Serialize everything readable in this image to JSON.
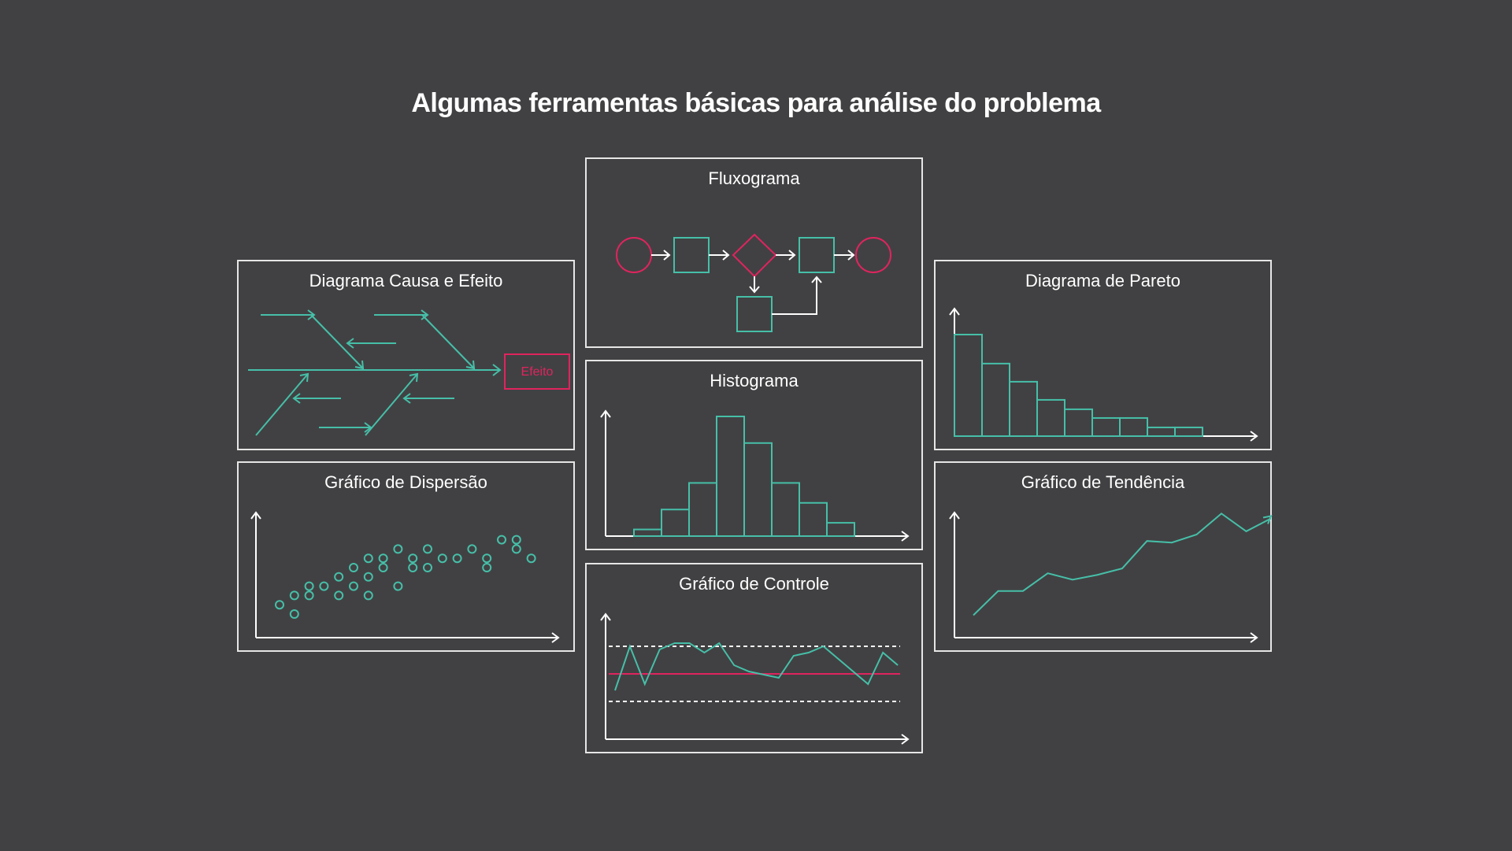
{
  "title": "Algumas ferramentas básicas para análise do problema",
  "panels": {
    "ishikawa": {
      "title": "Diagrama Causa e Efeito",
      "effect_label": "Efeito"
    },
    "scatter": {
      "title": "Gráfico de Dispersão"
    },
    "flow": {
      "title": "Fluxograma"
    },
    "histogram": {
      "title": "Histograma"
    },
    "control": {
      "title": "Gráfico de Controle"
    },
    "pareto": {
      "title": "Diagrama de Pareto"
    },
    "trend": {
      "title": "Gráfico de Tendência"
    }
  },
  "colors": {
    "background": "#414143",
    "teal": "#46bfa8",
    "red": "#e0245e",
    "white": "#ffffff"
  },
  "chart_data": [
    {
      "type": "bar",
      "name_ref": "histogram",
      "values": [
        1,
        4,
        8,
        18,
        14,
        8,
        5,
        2
      ]
    },
    {
      "type": "bar",
      "name_ref": "pareto",
      "values": [
        14,
        10,
        7.5,
        5,
        3.7,
        2.5,
        2.5,
        1.2,
        1.2
      ]
    },
    {
      "type": "scatter",
      "name_ref": "scatter",
      "points": [
        [
          1,
          1
        ],
        [
          2,
          0
        ],
        [
          2,
          2
        ],
        [
          3,
          2
        ],
        [
          3,
          3
        ],
        [
          4,
          3
        ],
        [
          5,
          2
        ],
        [
          5,
          4
        ],
        [
          6,
          5
        ],
        [
          6,
          3
        ],
        [
          7,
          2
        ],
        [
          7,
          6
        ],
        [
          7,
          4
        ],
        [
          8,
          6
        ],
        [
          8,
          5
        ],
        [
          9,
          7
        ],
        [
          9,
          3
        ],
        [
          10,
          6
        ],
        [
          10,
          5
        ],
        [
          11,
          7
        ],
        [
          11,
          5
        ],
        [
          12,
          6
        ],
        [
          13,
          6
        ],
        [
          14,
          7
        ],
        [
          15,
          6
        ],
        [
          15,
          5
        ],
        [
          16,
          8
        ],
        [
          17,
          8
        ],
        [
          17,
          7
        ],
        [
          18,
          6
        ]
      ]
    },
    {
      "type": "line",
      "name_ref": "trend",
      "values": [
        1,
        2.5,
        2.5,
        3.6,
        3.2,
        3.5,
        3.9,
        5.6,
        5.5,
        6,
        7.3,
        6.2,
        7
      ]
    },
    {
      "type": "line",
      "name_ref": "control",
      "values": [
        0.2,
        0.9,
        0.3,
        0.85,
        0.95,
        0.95,
        0.8,
        0.95,
        0.6,
        0.5,
        0.45,
        0.4,
        0.75,
        0.8,
        0.9,
        0.7,
        0.5,
        0.3,
        0.8,
        0.6
      ],
      "center_line": 0.5,
      "upper_limit": 1.0,
      "lower_limit": 0.0
    }
  ]
}
